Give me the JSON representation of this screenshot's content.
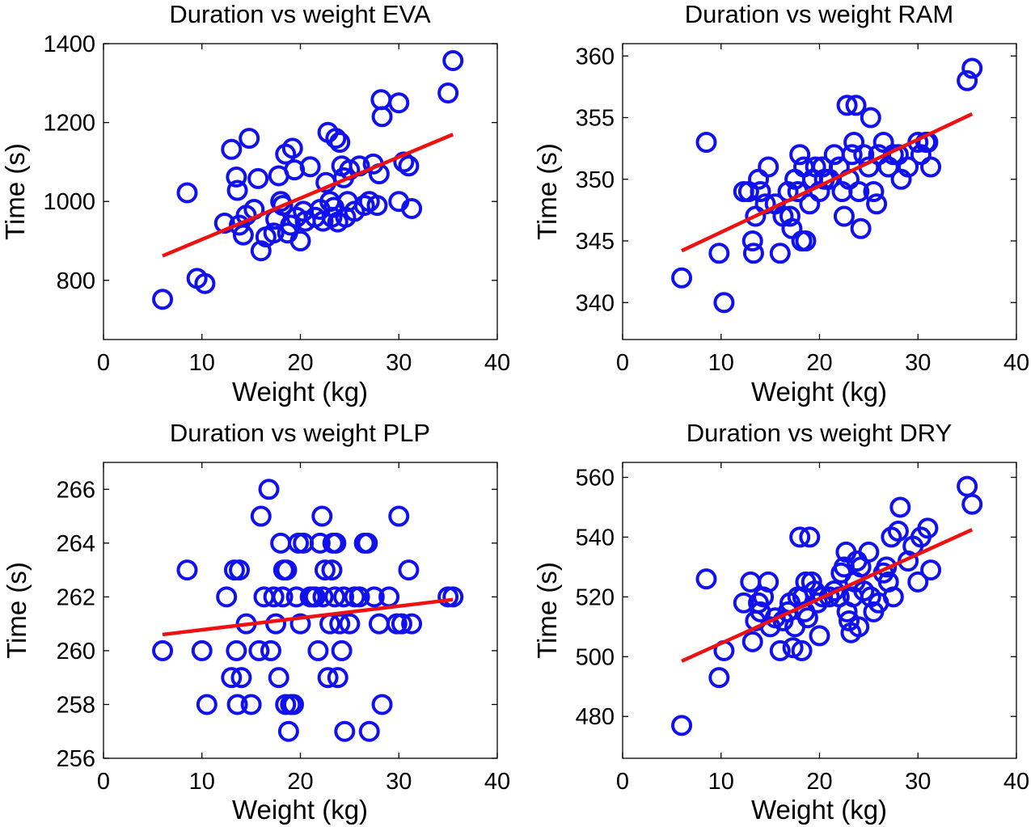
{
  "colors": {
    "points": "#1111ee",
    "fit": "#ee1111"
  },
  "chart_data": [
    {
      "type": "scatter",
      "title": "Duration vs weight EVA",
      "xlabel": "Weight (kg)",
      "ylabel": "Time (s)",
      "xlim": [
        0,
        40
      ],
      "ylim": [
        650,
        1400
      ],
      "xticks": [
        0,
        10,
        20,
        30,
        40
      ],
      "yticks": [
        800,
        1000,
        1200,
        1400
      ],
      "fit_line": {
        "x": [
          6,
          35.5
        ],
        "y": [
          862,
          1170
        ]
      },
      "points": [
        [
          6,
          752
        ],
        [
          8.5,
          1022
        ],
        [
          9.5,
          805
        ],
        [
          10.3,
          792
        ],
        [
          12.3,
          945
        ],
        [
          13,
          1132
        ],
        [
          13.5,
          1062
        ],
        [
          13.6,
          1028
        ],
        [
          13.8,
          940
        ],
        [
          14.2,
          915
        ],
        [
          14.5,
          965
        ],
        [
          14.8,
          1160
        ],
        [
          15.3,
          980
        ],
        [
          15.7,
          1058
        ],
        [
          16,
          875
        ],
        [
          16.5,
          910
        ],
        [
          17.3,
          920
        ],
        [
          17.5,
          955
        ],
        [
          17.8,
          1065
        ],
        [
          18,
          1000
        ],
        [
          18.2,
          990
        ],
        [
          18.5,
          1120
        ],
        [
          18.7,
          920
        ],
        [
          19,
          940
        ],
        [
          19.2,
          1135
        ],
        [
          19.4,
          1080
        ],
        [
          19.6,
          960
        ],
        [
          20,
          900
        ],
        [
          20.3,
          975
        ],
        [
          20.5,
          950
        ],
        [
          21,
          1088
        ],
        [
          21.5,
          960
        ],
        [
          22,
          980
        ],
        [
          22.3,
          950
        ],
        [
          22.6,
          1048
        ],
        [
          22.8,
          1175
        ],
        [
          23,
          1000
        ],
        [
          23.2,
          960
        ],
        [
          23.4,
          985
        ],
        [
          23.6,
          1160
        ],
        [
          23.8,
          948
        ],
        [
          24,
          1150
        ],
        [
          24.2,
          1090
        ],
        [
          24.4,
          1060
        ],
        [
          24.6,
          960
        ],
        [
          24.8,
          1000
        ],
        [
          25,
          1080
        ],
        [
          25.5,
          975
        ],
        [
          26,
          1090
        ],
        [
          26.5,
          990
        ],
        [
          27,
          1000
        ],
        [
          27.4,
          1095
        ],
        [
          27.8,
          990
        ],
        [
          28,
          1070
        ],
        [
          28.2,
          1258
        ],
        [
          28.3,
          1215
        ],
        [
          30,
          1250
        ],
        [
          30,
          1000
        ],
        [
          30.5,
          1100
        ],
        [
          31,
          1090
        ],
        [
          31.3,
          982
        ],
        [
          35,
          1275
        ],
        [
          35.5,
          1357
        ]
      ]
    },
    {
      "type": "scatter",
      "title": "Duration vs weight RAM",
      "xlabel": "Weight (kg)",
      "ylabel": "Time (s)",
      "xlim": [
        0,
        40
      ],
      "ylim": [
        337,
        361
      ],
      "xticks": [
        0,
        10,
        20,
        30,
        40
      ],
      "yticks": [
        340,
        345,
        350,
        355,
        360
      ],
      "fit_line": {
        "x": [
          6,
          35.5
        ],
        "y": [
          344.2,
          355.3
        ]
      },
      "points": [
        [
          6,
          342
        ],
        [
          8.5,
          353
        ],
        [
          9.8,
          344
        ],
        [
          10.3,
          340
        ],
        [
          12.3,
          349
        ],
        [
          12.8,
          349
        ],
        [
          13.2,
          345
        ],
        [
          13.3,
          344
        ],
        [
          13.5,
          347
        ],
        [
          13.8,
          350
        ],
        [
          14,
          349
        ],
        [
          14.5,
          348
        ],
        [
          14.8,
          351
        ],
        [
          15.5,
          348
        ],
        [
          16,
          344
        ],
        [
          16.3,
          347
        ],
        [
          16.8,
          349
        ],
        [
          17,
          347
        ],
        [
          17.2,
          346
        ],
        [
          17.5,
          350
        ],
        [
          17.8,
          349
        ],
        [
          18,
          352
        ],
        [
          18.2,
          345
        ],
        [
          18.4,
          351
        ],
        [
          18.6,
          345
        ],
        [
          19,
          348
        ],
        [
          19.3,
          350
        ],
        [
          19.6,
          351
        ],
        [
          20,
          349
        ],
        [
          20.3,
          351
        ],
        [
          20.5,
          350
        ],
        [
          21,
          350
        ],
        [
          21.5,
          352
        ],
        [
          22,
          351
        ],
        [
          22.3,
          349
        ],
        [
          22.5,
          347
        ],
        [
          22.8,
          356
        ],
        [
          23,
          350
        ],
        [
          23.3,
          352
        ],
        [
          23.5,
          353
        ],
        [
          23.7,
          356
        ],
        [
          24,
          349
        ],
        [
          24.2,
          346
        ],
        [
          24.5,
          352
        ],
        [
          25,
          351
        ],
        [
          25.2,
          355
        ],
        [
          25.5,
          349
        ],
        [
          25.8,
          348
        ],
        [
          26,
          352
        ],
        [
          26.5,
          353
        ],
        [
          27,
          351
        ],
        [
          27.5,
          352
        ],
        [
          28,
          352
        ],
        [
          28.3,
          350
        ],
        [
          29,
          351
        ],
        [
          30,
          353
        ],
        [
          30.3,
          352
        ],
        [
          30.8,
          353
        ],
        [
          31,
          353
        ],
        [
          31.3,
          351
        ],
        [
          35,
          358
        ],
        [
          35.5,
          359
        ]
      ]
    },
    {
      "type": "scatter",
      "title": "Duration vs weight PLP",
      "xlabel": "Weight (kg)",
      "ylabel": "Time (s)",
      "xlim": [
        0,
        40
      ],
      "ylim": [
        256,
        267
      ],
      "xticks": [
        0,
        10,
        20,
        30,
        40
      ],
      "yticks": [
        256,
        258,
        260,
        262,
        264,
        266
      ],
      "fit_line": {
        "x": [
          6,
          35.5
        ],
        "y": [
          260.6,
          261.9
        ]
      },
      "points": [
        [
          6,
          260
        ],
        [
          8.5,
          263
        ],
        [
          10,
          260
        ],
        [
          10.5,
          258
        ],
        [
          12.5,
          262
        ],
        [
          13,
          259
        ],
        [
          13.3,
          263
        ],
        [
          13.5,
          260
        ],
        [
          13.6,
          258
        ],
        [
          13.8,
          263
        ],
        [
          14,
          259
        ],
        [
          14.5,
          261
        ],
        [
          15,
          258
        ],
        [
          15.8,
          260
        ],
        [
          16,
          265
        ],
        [
          16.3,
          262
        ],
        [
          16.8,
          266
        ],
        [
          17,
          260
        ],
        [
          17.3,
          262
        ],
        [
          17.5,
          261
        ],
        [
          17.8,
          259
        ],
        [
          18,
          264
        ],
        [
          18.2,
          262
        ],
        [
          18.3,
          263
        ],
        [
          18.5,
          258
        ],
        [
          18.6,
          263
        ],
        [
          18.8,
          257
        ],
        [
          19,
          258
        ],
        [
          19.3,
          258
        ],
        [
          19.6,
          262
        ],
        [
          19.8,
          264
        ],
        [
          20,
          261
        ],
        [
          20.3,
          264
        ],
        [
          21,
          262
        ],
        [
          21.3,
          262
        ],
        [
          21.5,
          262
        ],
        [
          21.8,
          260
        ],
        [
          22,
          264
        ],
        [
          22.2,
          265
        ],
        [
          22.3,
          262
        ],
        [
          22.5,
          263
        ],
        [
          22.8,
          259
        ],
        [
          23,
          261
        ],
        [
          23.2,
          263
        ],
        [
          23.3,
          264
        ],
        [
          23.5,
          262
        ],
        [
          23.6,
          264
        ],
        [
          23.8,
          259
        ],
        [
          24,
          261
        ],
        [
          24.2,
          260
        ],
        [
          24.4,
          262
        ],
        [
          24.5,
          257
        ],
        [
          25,
          261
        ],
        [
          25.5,
          262
        ],
        [
          26,
          262
        ],
        [
          26.5,
          264
        ],
        [
          26.8,
          264
        ],
        [
          27,
          257
        ],
        [
          27.5,
          262
        ],
        [
          28,
          261
        ],
        [
          28.3,
          258
        ],
        [
          29,
          262
        ],
        [
          29.8,
          261
        ],
        [
          30,
          265
        ],
        [
          30.3,
          261
        ],
        [
          31,
          263
        ],
        [
          31.3,
          261
        ],
        [
          35,
          262
        ],
        [
          35.5,
          262
        ]
      ]
    },
    {
      "type": "scatter",
      "title": "Duration vs weight DRY",
      "xlabel": "Weight (kg)",
      "ylabel": "Time (s)",
      "xlim": [
        0,
        40
      ],
      "ylim": [
        466,
        565
      ],
      "xticks": [
        0,
        10,
        20,
        30,
        40
      ],
      "yticks": [
        480,
        500,
        520,
        540,
        560
      ],
      "fit_line": {
        "x": [
          6,
          35.5
        ],
        "y": [
          498.5,
          542.5
        ]
      },
      "points": [
        [
          6,
          477
        ],
        [
          8.5,
          526
        ],
        [
          9.8,
          493
        ],
        [
          10.3,
          502
        ],
        [
          12.3,
          518
        ],
        [
          13,
          525
        ],
        [
          13.2,
          505
        ],
        [
          13.5,
          512
        ],
        [
          13.8,
          518
        ],
        [
          14,
          515
        ],
        [
          14.3,
          520
        ],
        [
          14.8,
          525
        ],
        [
          15,
          510
        ],
        [
          15.5,
          513
        ],
        [
          16,
          502
        ],
        [
          16.3,
          512
        ],
        [
          16.8,
          515
        ],
        [
          17,
          518
        ],
        [
          17.3,
          503
        ],
        [
          17.5,
          510
        ],
        [
          17.8,
          520
        ],
        [
          18,
          540
        ],
        [
          18.2,
          502
        ],
        [
          18.3,
          520
        ],
        [
          18.5,
          515
        ],
        [
          18.6,
          525
        ],
        [
          18.8,
          513
        ],
        [
          19,
          540
        ],
        [
          19.2,
          525
        ],
        [
          19.5,
          522
        ],
        [
          19.8,
          518
        ],
        [
          20,
          507
        ],
        [
          20.3,
          520
        ],
        [
          21,
          520
        ],
        [
          21.5,
          522
        ],
        [
          22,
          520
        ],
        [
          22.2,
          528
        ],
        [
          22.5,
          530
        ],
        [
          22.7,
          535
        ],
        [
          22.8,
          515
        ],
        [
          23,
          512
        ],
        [
          23.2,
          508
        ],
        [
          23.4,
          520
        ],
        [
          23.6,
          525
        ],
        [
          23.8,
          532
        ],
        [
          24,
          510
        ],
        [
          24.2,
          530
        ],
        [
          24.5,
          522
        ],
        [
          25,
          535
        ],
        [
          25.2,
          520
        ],
        [
          25.5,
          515
        ],
        [
          26,
          518
        ],
        [
          26.5,
          528
        ],
        [
          26.8,
          530
        ],
        [
          27,
          525
        ],
        [
          27.3,
          540
        ],
        [
          27.5,
          520
        ],
        [
          28,
          542
        ],
        [
          28.2,
          550
        ],
        [
          29,
          532
        ],
        [
          29.5,
          537
        ],
        [
          30,
          525
        ],
        [
          30.3,
          540
        ],
        [
          31,
          543
        ],
        [
          31.3,
          529
        ],
        [
          35,
          557
        ],
        [
          35.5,
          551
        ]
      ]
    }
  ]
}
